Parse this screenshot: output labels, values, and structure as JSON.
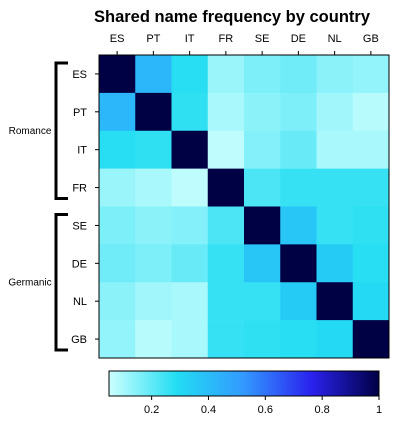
{
  "chart_data": {
    "type": "heatmap",
    "title": "Shared name frequency by country",
    "columns": [
      "ES",
      "PT",
      "IT",
      "FR",
      "SE",
      "DE",
      "NL",
      "GB"
    ],
    "rows": [
      "ES",
      "PT",
      "IT",
      "FR",
      "SE",
      "DE",
      "NL",
      "GB"
    ],
    "values": [
      [
        1.0,
        0.42,
        0.28,
        0.12,
        0.16,
        0.18,
        0.14,
        0.13
      ],
      [
        0.42,
        1.0,
        0.27,
        0.1,
        0.14,
        0.16,
        0.11,
        0.08
      ],
      [
        0.28,
        0.27,
        1.0,
        0.07,
        0.15,
        0.19,
        0.1,
        0.1
      ],
      [
        0.12,
        0.1,
        0.07,
        1.0,
        0.23,
        0.26,
        0.26,
        0.26
      ],
      [
        0.16,
        0.14,
        0.15,
        0.23,
        1.0,
        0.37,
        0.26,
        0.27
      ],
      [
        0.18,
        0.16,
        0.19,
        0.26,
        0.37,
        1.0,
        0.35,
        0.28
      ],
      [
        0.14,
        0.11,
        0.1,
        0.26,
        0.26,
        0.35,
        1.0,
        0.3
      ],
      [
        0.13,
        0.08,
        0.1,
        0.26,
        0.27,
        0.28,
        0.3,
        1.0
      ]
    ],
    "row_groups": [
      {
        "name": "Romance",
        "rows": [
          "ES",
          "PT",
          "IT",
          "FR"
        ]
      },
      {
        "name": "Germanic",
        "rows": [
          "SE",
          "DE",
          "NL",
          "GB"
        ]
      }
    ],
    "colorbar": {
      "ticks": [
        0.2,
        0.4,
        0.6,
        0.8,
        1
      ],
      "tick_labels": [
        "0.2",
        "0.4",
        "0.6",
        "0.8",
        "1"
      ],
      "range": [
        0.05,
        1
      ],
      "colors": [
        "#ccffff",
        "#22ddf2",
        "#3399ff",
        "#2a22ee",
        "#000044"
      ],
      "orientation": "horizontal",
      "position": "bottom"
    },
    "xaxis_position": "top",
    "grid": false
  }
}
